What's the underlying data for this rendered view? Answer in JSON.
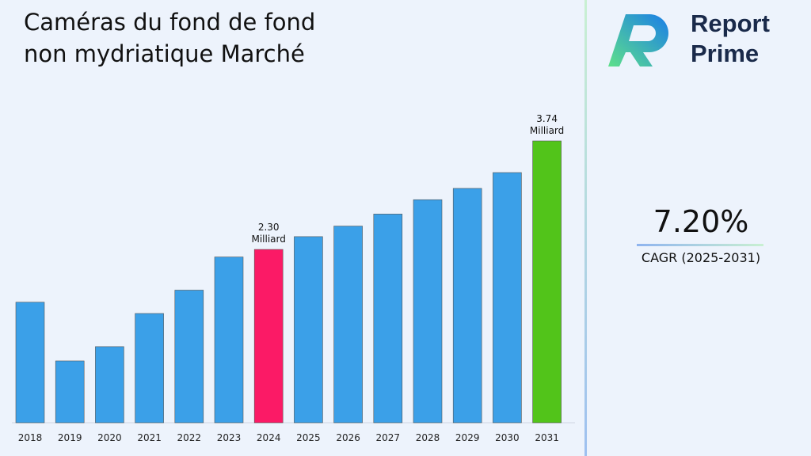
{
  "chart_data": {
    "type": "bar",
    "title": "Caméras du fond de fond non mydriatique Marché",
    "categories": [
      "2018",
      "2019",
      "2020",
      "2021",
      "2022",
      "2023",
      "2024",
      "2025",
      "2026",
      "2027",
      "2028",
      "2029",
      "2030",
      "2031"
    ],
    "values": [
      1.6,
      0.82,
      1.01,
      1.45,
      1.76,
      2.2,
      2.3,
      2.47,
      2.61,
      2.77,
      2.96,
      3.11,
      3.32,
      3.74
    ],
    "value_labels": [
      null,
      null,
      null,
      null,
      null,
      null,
      "2.30 Milliard",
      null,
      null,
      null,
      null,
      null,
      null,
      "3.74 Milliard"
    ],
    "colors": [
      "#3ba0e8",
      "#3ba0e8",
      "#3ba0e8",
      "#3ba0e8",
      "#3ba0e8",
      "#3ba0e8",
      "#fb1a66",
      "#3ba0e8",
      "#3ba0e8",
      "#3ba0e8",
      "#3ba0e8",
      "#3ba0e8",
      "#3ba0e8",
      "#52c41a"
    ]
  },
  "cagr": {
    "value": "7.20%",
    "label": "CAGR (2025-2031)"
  },
  "brand": {
    "line1": "Report",
    "line2": "Prime"
  }
}
